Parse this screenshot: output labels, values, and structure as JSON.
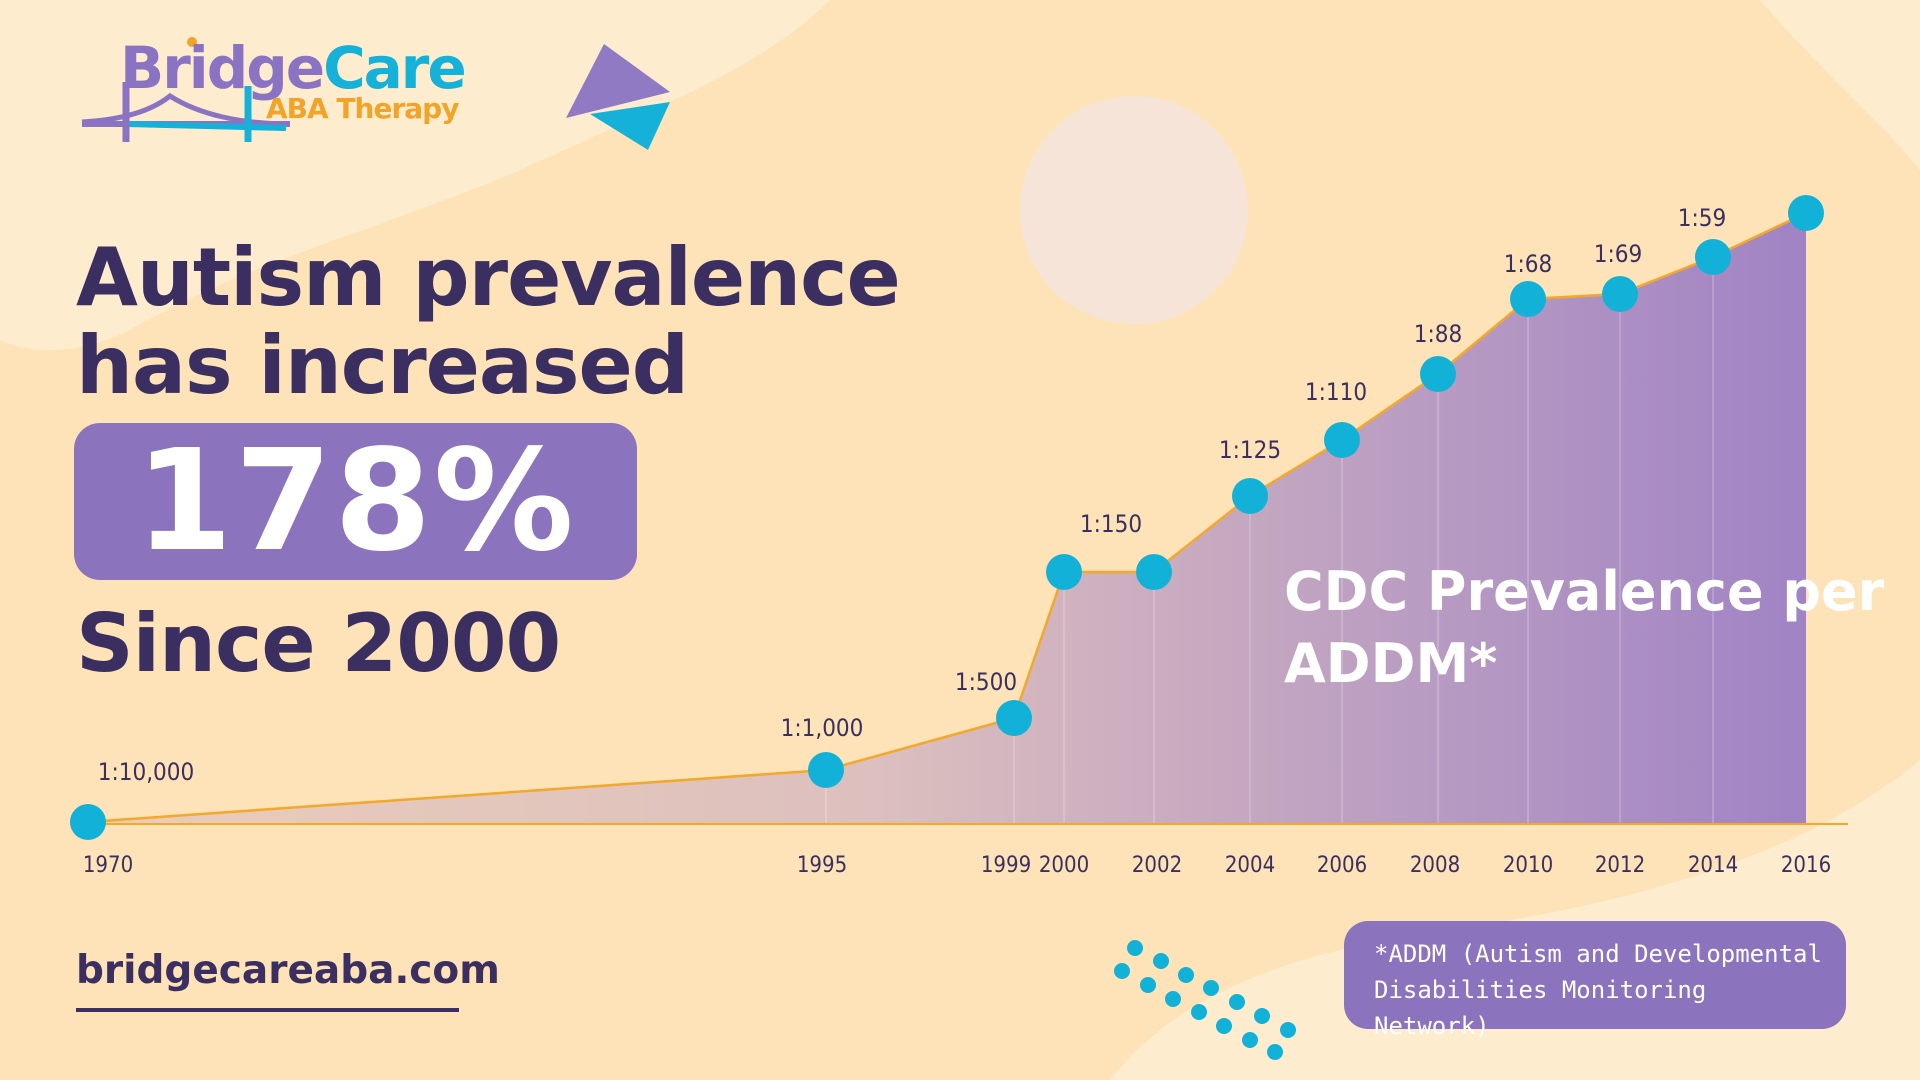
{
  "brand": {
    "name_part1": "Bridge",
    "name_part2": "Care",
    "tagline": "ABA Therapy",
    "website": "bridgecareaba.com"
  },
  "headline": {
    "line1": "Autism prevalence",
    "line2": "has increased",
    "percent": "178%",
    "since": "Since 2000"
  },
  "footnote": {
    "line1": "*ADDM (Autism and Developmental",
    "line2": "Disabilities Monitoring Network)"
  },
  "colors": {
    "background": "#fde3b7",
    "accent_purple": "#8b74bd",
    "dark_text": "#3a2f60",
    "marker_blue": "#12b2d8",
    "line_orange": "#f3a82a"
  },
  "chart_data": {
    "type": "area",
    "title": "CDC Prevalence per ADDM*",
    "x": [
      1970,
      1995,
      1999,
      2000,
      2002,
      2004,
      2006,
      2008,
      2010,
      2012,
      2014,
      2016
    ],
    "x_tick_labels": [
      "1970",
      "1995",
      "1999",
      "2000",
      "2002",
      "2004",
      "2006",
      "2008",
      "2010",
      "2012",
      "2014",
      "2016"
    ],
    "point_labels": [
      "1:10,000",
      "1:1,000",
      "1:500",
      "",
      "1:150",
      "1:125",
      "1:110",
      "1:88",
      "1:68",
      "1:69",
      "1:59",
      ""
    ],
    "markers": true,
    "grid": false,
    "legend": "none"
  }
}
